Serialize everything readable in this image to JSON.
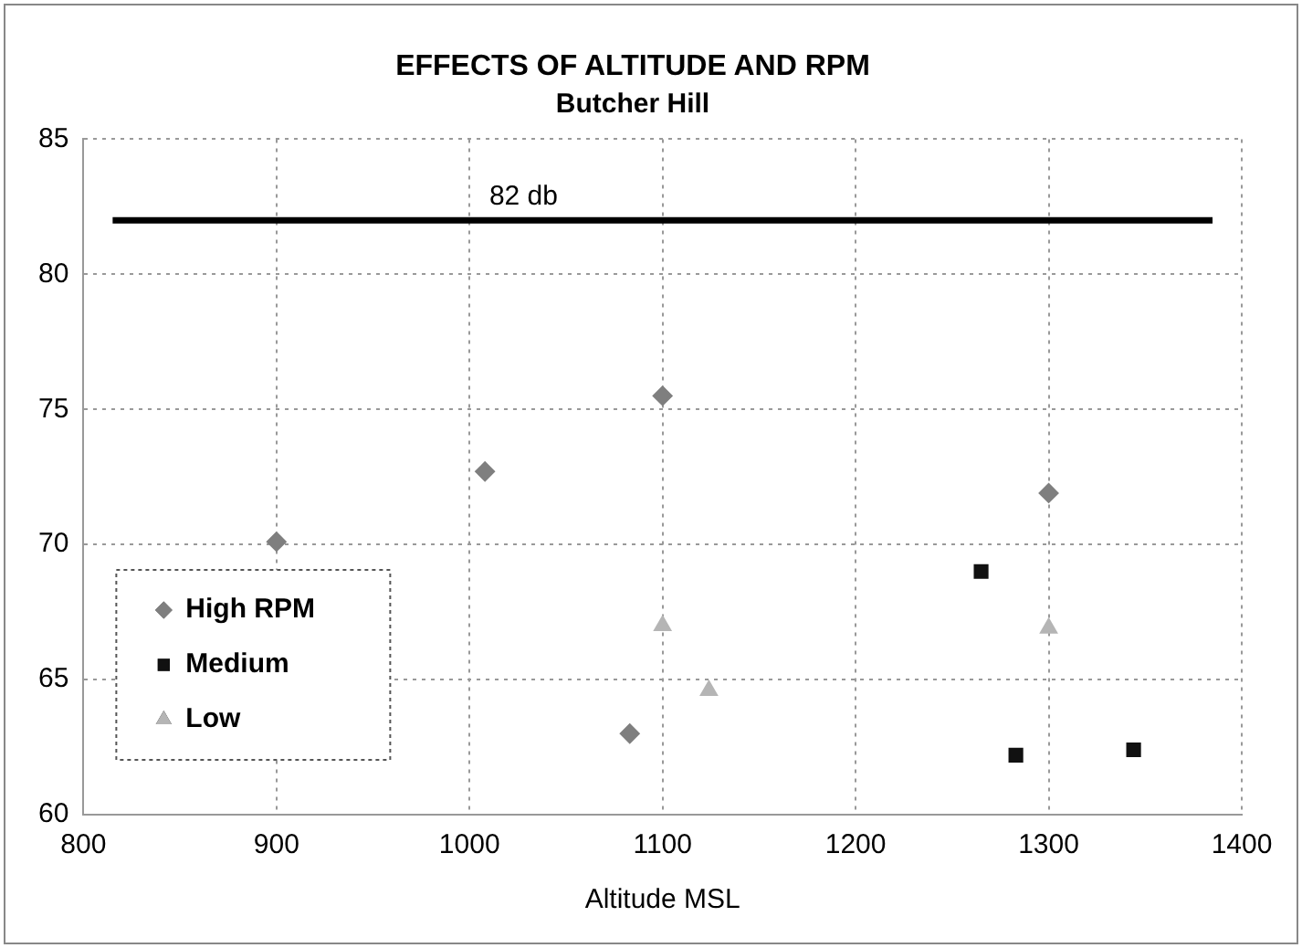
{
  "chart_data": {
    "type": "scatter",
    "title": "EFFECTS OF ALTITUDE AND RPM",
    "subtitle": "Butcher Hill",
    "xlabel": "Altitude MSL",
    "xlim": [
      800,
      1400
    ],
    "xticks": [
      800,
      900,
      1000,
      1100,
      1200,
      1300,
      1400
    ],
    "ylim": [
      60,
      85
    ],
    "yticks": [
      60,
      65,
      70,
      75,
      80,
      85
    ],
    "grid": true,
    "legend": "bottom left",
    "series": [
      {
        "name": "High RPM",
        "color": "#7f7f7f",
        "marker": "diamond",
        "x": [
          900,
          1008,
          1100,
          1083,
          1300
        ],
        "values": [
          70.1,
          72.7,
          75.5,
          63.0,
          71.9
        ]
      },
      {
        "name": "Medium",
        "color": "#111111",
        "marker": "square",
        "x": [
          1265,
          1283,
          1344
        ],
        "values": [
          69.0,
          62.2,
          62.4
        ]
      },
      {
        "name": "Low",
        "color": "#b5b5b5",
        "marker": "triangle",
        "x": [
          1100,
          1124,
          1300
        ],
        "values": [
          67.0,
          64.6,
          66.9
        ]
      }
    ],
    "ref_lines": [
      {
        "axis": "y",
        "value": 82,
        "label": "82 db",
        "color": "#000000"
      }
    ]
  }
}
